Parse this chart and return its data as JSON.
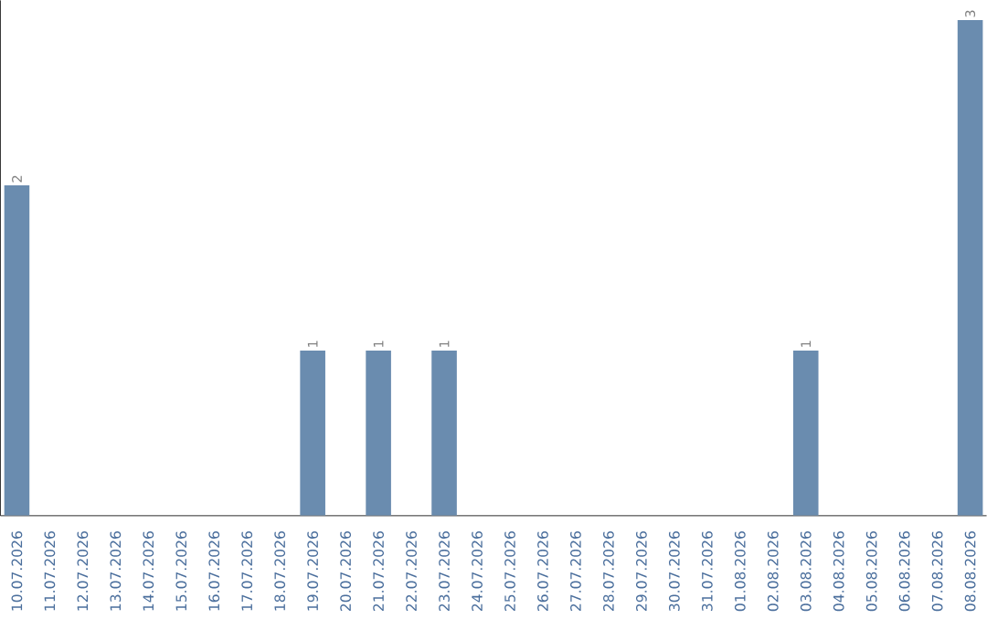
{
  "chart_data": {
    "type": "bar",
    "categories": [
      "10.07.2026",
      "11.07.2026",
      "12.07.2026",
      "13.07.2026",
      "14.07.2026",
      "15.07.2026",
      "16.07.2026",
      "17.07.2026",
      "18.07.2026",
      "19.07.2026",
      "20.07.2026",
      "21.07.2026",
      "22.07.2026",
      "23.07.2026",
      "24.07.2026",
      "25.07.2026",
      "26.07.2026",
      "27.07.2026",
      "28.07.2026",
      "29.07.2026",
      "30.07.2026",
      "31.07.2026",
      "01.08.2026",
      "02.08.2026",
      "03.08.2026",
      "04.08.2026",
      "05.08.2026",
      "06.08.2026",
      "07.08.2026",
      "08.08.2026"
    ],
    "values": [
      2,
      0,
      0,
      0,
      0,
      0,
      0,
      0,
      0,
      1,
      0,
      1,
      0,
      1,
      0,
      0,
      0,
      0,
      0,
      0,
      0,
      0,
      0,
      0,
      1,
      0,
      0,
      0,
      0,
      3
    ],
    "value_labels": [
      "2",
      null,
      null,
      null,
      null,
      null,
      null,
      null,
      null,
      "1",
      null,
      "1",
      null,
      "1",
      null,
      null,
      null,
      null,
      null,
      null,
      null,
      null,
      null,
      null,
      "1",
      null,
      null,
      null,
      null,
      "3"
    ],
    "color": "#6a8caf",
    "tick_labels": "x"
  }
}
